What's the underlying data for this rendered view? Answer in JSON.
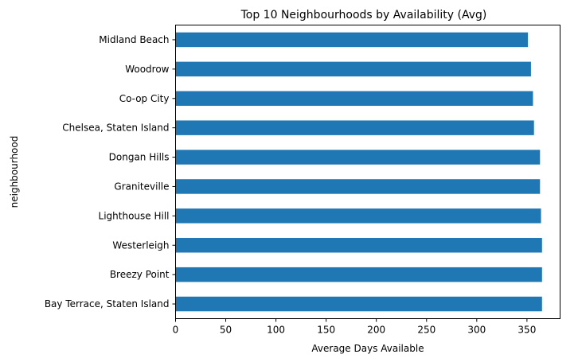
{
  "chart_data": {
    "type": "bar",
    "orientation": "horizontal",
    "title": "Top 10 Neighbourhoods by Availability (Avg)",
    "xlabel": "Average Days Available",
    "ylabel": "neighbourhood",
    "categories": [
      "Midland Beach",
      "Woodrow",
      "Co-op City",
      "Chelsea, Staten Island",
      "Dongan Hills",
      "Graniteville",
      "Lighthouse Hill",
      "Westerleigh",
      "Breezy Point",
      "Bay Terrace, Staten Island"
    ],
    "values": [
      351,
      354,
      356,
      357,
      363,
      363,
      364,
      365,
      365,
      365
    ],
    "xlim": [
      0,
      383
    ],
    "xticks": [
      0,
      50,
      100,
      150,
      200,
      250,
      300,
      350
    ],
    "grid": false,
    "bar_color": "#1f77b4"
  }
}
